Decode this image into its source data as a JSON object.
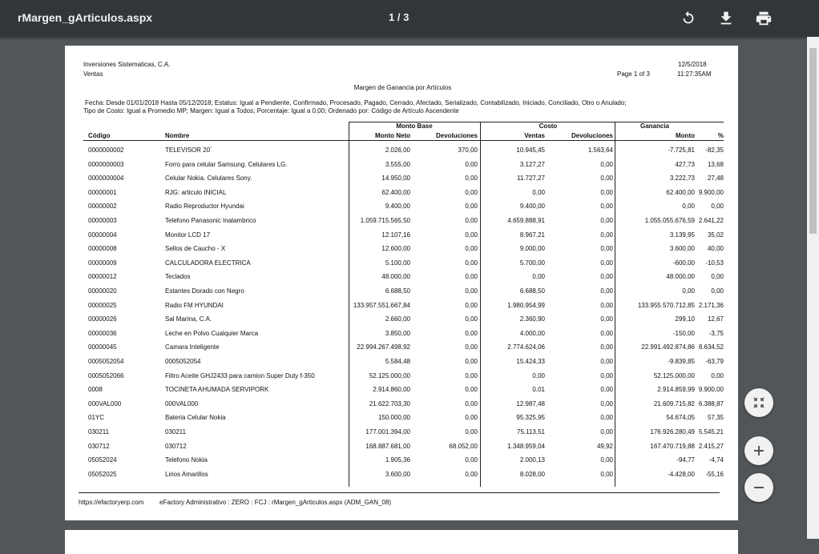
{
  "viewer": {
    "title": "rMargen_gArticulos.aspx",
    "page_indicator": "1 / 3"
  },
  "report": {
    "company": "Inversiones Sistematicas, C.A.",
    "department": "Ventas",
    "date": "12/5/2018",
    "time": "11:27:35AM",
    "page": "Page 1 of 3",
    "title": "Margen de Ganancia por Artículos",
    "filters": [
      "Fecha: Desde 01/01/2018  Hasta 05/12/2018; Estatus: Igual a Pendiente, Confirmado, Procesado, Pagado, Cerrado, Afectado, Serializado, Contabilizado, Iniciado, Conciliado, Otro o Anulado;",
      "Tipo de Costo: Igual a Promedio MP; Margen: Igual a Todos; Porcentaje: Igual a 0,00; Ordenado por: Código de Artículo Ascendente"
    ],
    "table": {
      "groups": [
        "Monto Base",
        "Costo",
        "Ganancia"
      ],
      "columns": [
        "Código",
        "Nombre",
        "Monto Neto",
        "Devoluciones",
        "Ventas",
        "Devoluciones",
        "Monto",
        "%"
      ],
      "rows": [
        [
          "0000000002",
          "TELEVISOR 20´",
          "2.026,00",
          "370,00",
          "10.945,45",
          "1.563,64",
          "-7.725,81",
          "-82,35"
        ],
        [
          "0000000003",
          "Forro para celular Samsung. Celulares LG.",
          "3.555,00",
          "0,00",
          "3.127,27",
          "0,00",
          "427,73",
          "13,68"
        ],
        [
          "0000000004",
          "Celular Nokia. Celulares Sony.",
          "14.950,00",
          "0,00",
          "11.727,27",
          "0,00",
          "3.222,73",
          "27,48"
        ],
        [
          "00000001",
          "RJG: articulo INICIAL",
          "62.400,00",
          "0,00",
          "0,00",
          "0,00",
          "62.400,00",
          "9.900,00"
        ],
        [
          "00000002",
          "Radio Reproductor  Hyundai",
          "9.400,00",
          "0,00",
          "9.400,00",
          "0,00",
          "0,00",
          "0,00"
        ],
        [
          "00000003",
          "Telefono Panasonic Inalambrico",
          "1.059.715.565,50",
          "0,00",
          "4.659.888,91",
          "0,00",
          "1.055.055.676,59",
          "2.641,22"
        ],
        [
          "00000004",
          "Monitor LCD 17",
          "12.107,16",
          "0,00",
          "8.967,21",
          "0,00",
          "3.139,95",
          "35,02"
        ],
        [
          "00000008",
          "Sellos de Caucho - X",
          "12.600,00",
          "0,00",
          "9.000,00",
          "0,00",
          "3.600,00",
          "40,00"
        ],
        [
          "00000009",
          "CALCULADORA ELECTRICA",
          "5.100,00",
          "0,00",
          "5.700,00",
          "0,00",
          "-600,00",
          "-10,53"
        ],
        [
          "00000012",
          "Teclados",
          "48.000,00",
          "0,00",
          "0,00",
          "0,00",
          "48.000,00",
          "0,00"
        ],
        [
          "00000020",
          "Estantes Dorado con Negro",
          "6.688,50",
          "0,00",
          "6.688,50",
          "0,00",
          "0,00",
          "0,00"
        ],
        [
          "00000025",
          "Radio FM HYUNDAI",
          "133.957.551.667,84",
          "0,00",
          "1.980.954,99",
          "0,00",
          "133.955.570.712,85",
          "2.171,36"
        ],
        [
          "00000026",
          "Sal Marina, C.A.",
          "2.660,00",
          "0,00",
          "2.360,90",
          "0,00",
          "299,10",
          "12,67"
        ],
        [
          "00000036",
          "Leche en Polvo Cualquier Marca",
          "3.850,00",
          "0,00",
          "4.000,00",
          "0,00",
          "-150,00",
          "-3,75"
        ],
        [
          "00000045",
          "Camara Inteligente",
          "22.994.267.498,92",
          "0,00",
          "2.774.624,06",
          "0,00",
          "22.991.492.874,86",
          "8.634,52"
        ],
        [
          "0005052054",
          "0005052054",
          "5.584,48",
          "0,00",
          "15.424,33",
          "0,00",
          "-9.839,85",
          "-63,79"
        ],
        [
          "0005052066",
          "Filtro Aceite GHJ2433 para camion Super Duty f-350",
          "52.125.000,00",
          "0,00",
          "0,00",
          "0,00",
          "52.125.000,00",
          "0,00"
        ],
        [
          "0008",
          "TOCINETA AHUMADA SERVIPORK",
          "2.914.860,00",
          "0,00",
          "0,01",
          "0,00",
          "2.914.859,99",
          "9.900,00"
        ],
        [
          "000VAL000",
          "000VAL000",
          "21.622.703,30",
          "0,00",
          "12.987,48",
          "0,00",
          "21.609.715,82",
          "6.388,87"
        ],
        [
          "01YC",
          "Bateria Celular Nokia",
          "150.000,00",
          "0,00",
          "95.325,95",
          "0,00",
          "54.674,05",
          "57,35"
        ],
        [
          "030211",
          "030211",
          "177.001.394,00",
          "0,00",
          "75.113,51",
          "0,00",
          "176.926.280,49",
          "5.545,21"
        ],
        [
          "030712",
          "030712",
          "168.887.681,00",
          "68.052,00",
          "1.348.959,04",
          "49,92",
          "167.470.719,88",
          "2.415,27"
        ],
        [
          "05052024",
          "Telefono Nokia",
          "1.905,36",
          "0,00",
          "2.000,13",
          "0,00",
          "-94,77",
          "-4,74"
        ],
        [
          "05052025",
          "Lirios Amarillos",
          "3.600,00",
          "0,00",
          "8.028,00",
          "0,00",
          "-4.428,00",
          "-55,16"
        ]
      ]
    },
    "footer": {
      "url": "https://efactoryerp.com",
      "info": "eFactory Administrativo  :  ZERO  :  FCJ  :  rMargen_gArticulos.aspx (ADM_GAN_08)"
    }
  }
}
